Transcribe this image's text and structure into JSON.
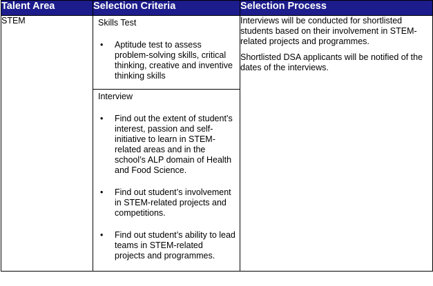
{
  "table": {
    "headers": [
      "Talent Area",
      "Selection Criteria",
      "Selection Process"
    ],
    "talent_area": "STEM",
    "skills_test": {
      "title": "Skills Test",
      "bullets": [
        "Aptitude test to assess problem-solving skills, critical thinking, creative and inventive thinking skills"
      ]
    },
    "interview": {
      "title": "Interview",
      "bullets": [
        "Find out the extent of student’s interest, passion and self-initiative to learn in STEM-related areas and in the school’s ALP domain of Health and Food Science.",
        "Find out student’s involvement in STEM-related projects and competitions.",
        "Find out student’s ability to lead teams in STEM-related projects and programmes."
      ]
    },
    "process": [
      "Interviews will be conducted for shortlisted students based on their involvement in STEM-related projects and programmes.",
      "Shortlisted DSA applicants will be notified of the dates of the interviews."
    ],
    "bullet_glyph": "•",
    "header_color": "#1c1c8c"
  }
}
